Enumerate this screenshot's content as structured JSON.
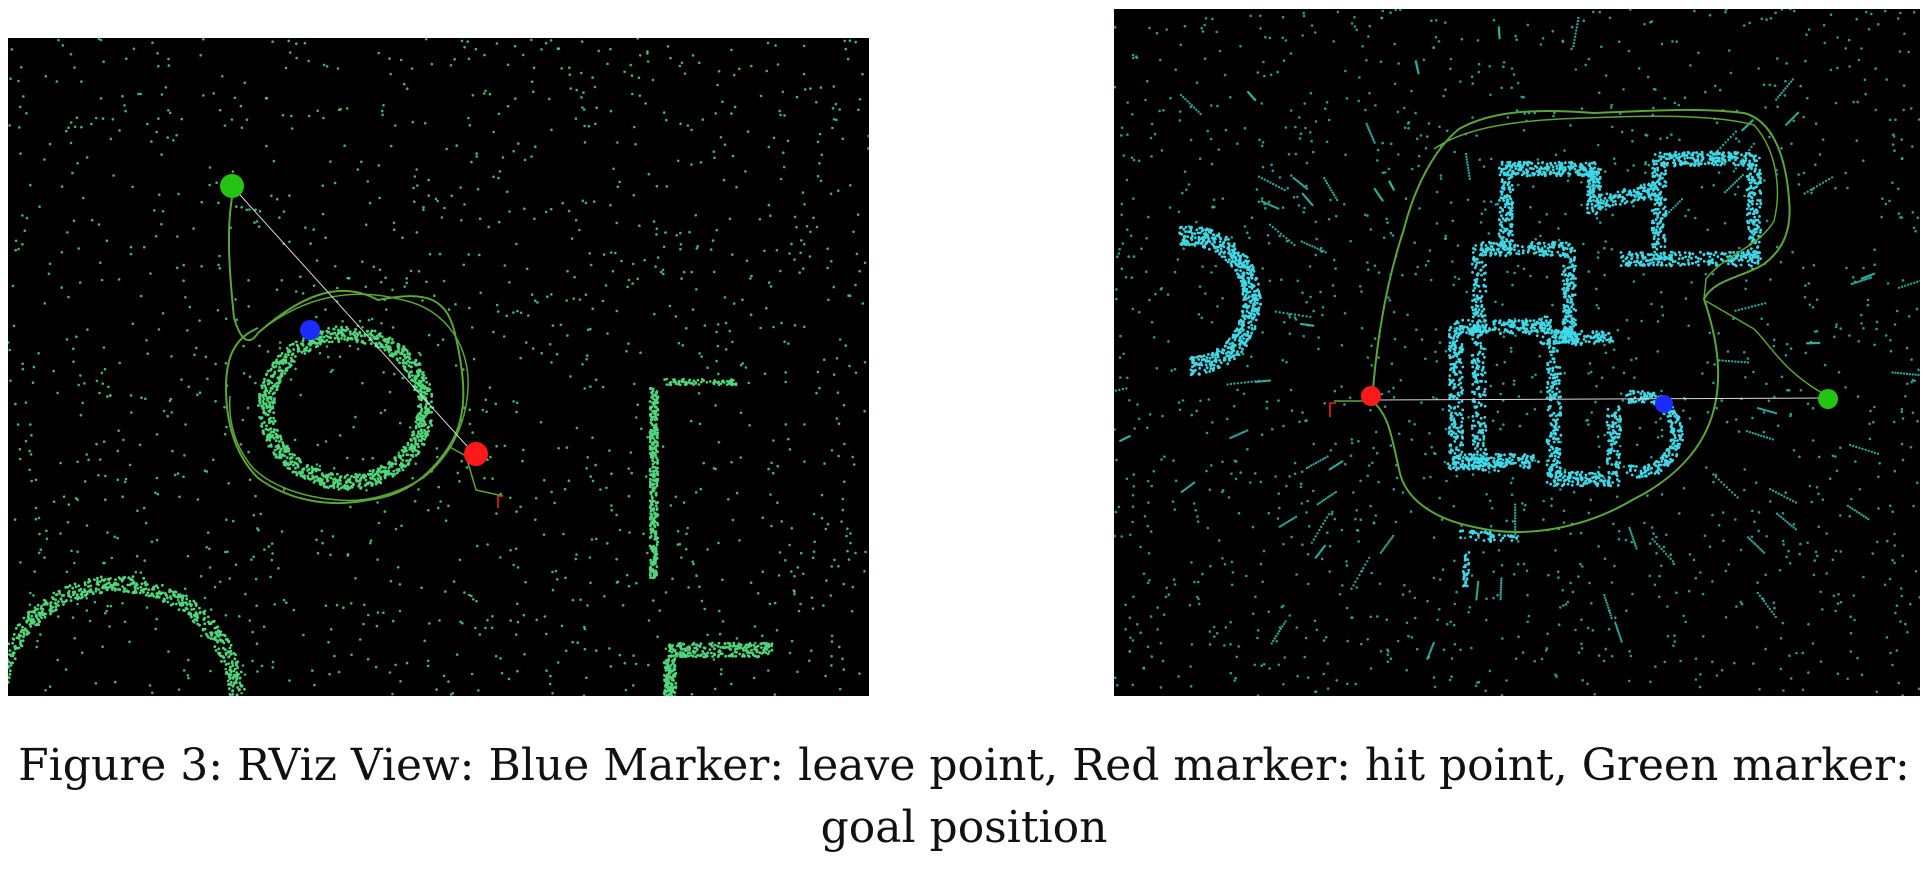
{
  "figure": {
    "caption_line1": "Figure 3: RViz View: Blue Marker: leave point, Red marker: hit point, Green marker:",
    "caption_line2": "goal position"
  },
  "colors": {
    "background": "#000000",
    "left_cloud": "#4fd67a",
    "right_cloud_dense": "#3fd8e6",
    "right_cloud_sparse": "#2fb7a6",
    "path": "#5aa636",
    "goal_marker": "#25c414",
    "hit_marker": "#ff1a1a",
    "leave_marker": "#1a2cff"
  },
  "panels": [
    {
      "name": "left-rviz-view",
      "markers": [
        "goal-marker",
        "hit-marker",
        "leave-marker"
      ]
    },
    {
      "name": "right-rviz-view",
      "markers": [
        "goal-marker",
        "hit-marker",
        "leave-marker"
      ]
    }
  ]
}
